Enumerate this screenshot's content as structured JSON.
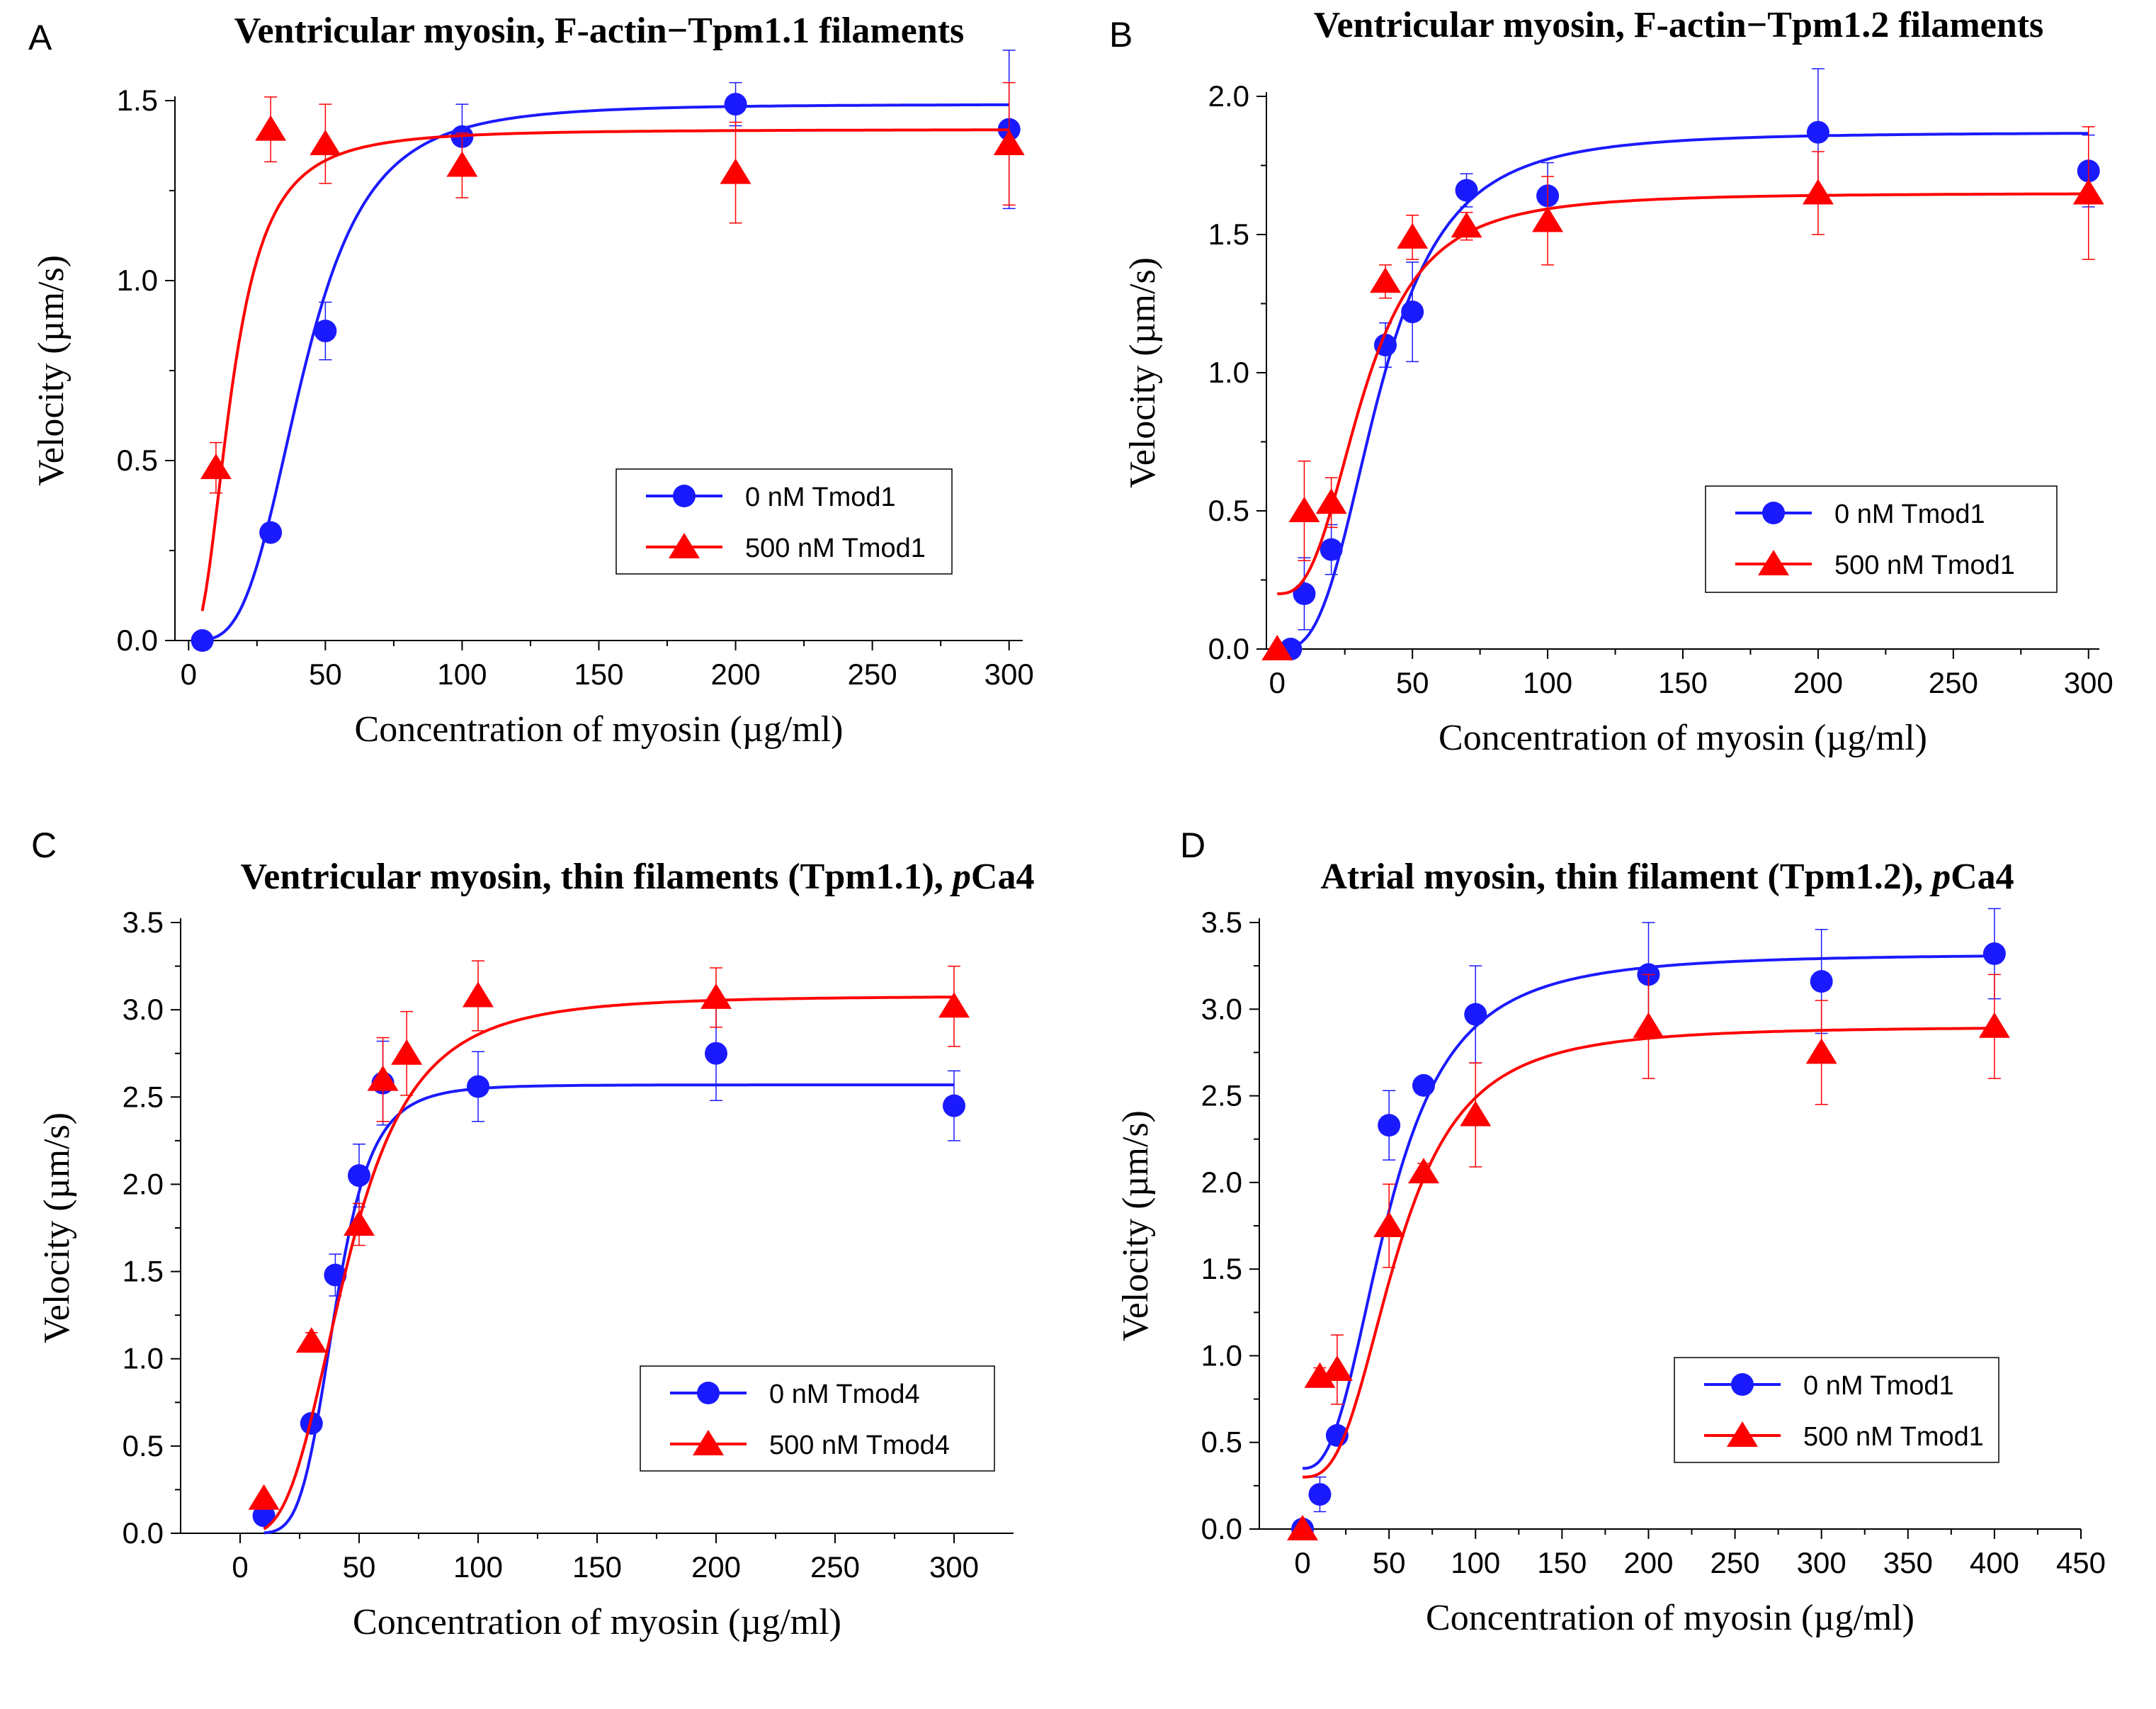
{
  "chart_data": [
    {
      "panel": "A",
      "type": "scatter",
      "title": "Ventricular myosin, F-actin−Tpm1.1 filaments",
      "title_pca": "",
      "xlabel": "Concentration of myosin (µg/ml)",
      "ylabel": "Velocity (µm/s)",
      "xlim": [
        -5,
        305
      ],
      "ylim": [
        0,
        1.5
      ],
      "xticks": [
        0,
        50,
        100,
        150,
        200,
        250,
        300
      ],
      "yticks": [
        0.0,
        0.5,
        1.0,
        1.5
      ],
      "ytick_decimals": 1,
      "legend_position": "center-right",
      "series": [
        {
          "name": "0 nM Tmod1",
          "color": "#1a1aff",
          "marker": "circle",
          "x": [
            5,
            30,
            50,
            100,
            200,
            300
          ],
          "y": [
            0.0,
            0.3,
            0.86,
            1.4,
            1.49,
            1.42
          ],
          "err": [
            0,
            0,
            0.08,
            0.09,
            0.06,
            0.22
          ],
          "fit": {
            "vmax": 1.49,
            "k": 42,
            "n": 3.5,
            "x_from": 5,
            "x_to": 300
          }
        },
        {
          "name": "500 nM Tmod1",
          "color": "#ff0000",
          "marker": "triangle",
          "x": [
            10,
            30,
            50,
            100,
            200,
            300
          ],
          "y": [
            0.48,
            1.42,
            1.38,
            1.32,
            1.3,
            1.38
          ],
          "err": [
            0.07,
            0.09,
            0.11,
            0.09,
            0.14,
            0.17
          ],
          "fit": {
            "vmax": 1.42,
            "k": 16,
            "n": 2.4,
            "x_from": 5,
            "x_to": 300
          }
        }
      ]
    },
    {
      "panel": "B",
      "type": "scatter",
      "title": "Ventricular myosin, F-actin−Tpm1.2 filaments",
      "title_pca": "",
      "xlabel": "Concentration of myosin (µg/ml)",
      "ylabel": "Velocity (µm/s)",
      "xlim": [
        -4,
        304
      ],
      "ylim": [
        0,
        2.0
      ],
      "xticks": [
        0,
        50,
        100,
        150,
        200,
        250,
        300
      ],
      "yticks": [
        0.0,
        0.5,
        1.0,
        1.5,
        2.0
      ],
      "ytick_decimals": 1,
      "legend_position": "center-right",
      "series": [
        {
          "name": "0 nM Tmod1",
          "color": "#1a1aff",
          "marker": "circle",
          "x": [
            5,
            10,
            20,
            40,
            50,
            70,
            100,
            200,
            300
          ],
          "y": [
            0.0,
            0.2,
            0.36,
            1.1,
            1.22,
            1.66,
            1.64,
            1.87,
            1.73
          ],
          "err": [
            0,
            0.13,
            0.09,
            0.08,
            0.18,
            0.06,
            0.12,
            0.23,
            0.13
          ],
          "fit": {
            "vmax": 1.87,
            "k": 38,
            "n": 3.0,
            "x_from": 5,
            "x_to": 300
          }
        },
        {
          "name": "500 nM Tmod1",
          "color": "#ff0000",
          "marker": "triangle",
          "x": [
            0,
            10,
            20,
            40,
            50,
            70,
            100,
            200,
            300
          ],
          "y": [
            0.0,
            0.5,
            0.53,
            1.33,
            1.49,
            1.53,
            1.55,
            1.65,
            1.65
          ],
          "err": [
            0,
            0.18,
            0.09,
            0.06,
            0.08,
            0.05,
            0.16,
            0.15,
            0.24
          ],
          "fit": {
            "vmax": 1.65,
            "k": 32,
            "n": 2.8,
            "x_from": 0,
            "x_to": 300,
            "offset": 0.2
          }
        }
      ]
    },
    {
      "panel": "C",
      "type": "scatter",
      "title": "Ventricular myosin, thin filaments (Tpm1.1), ",
      "title_pca": "pCa4",
      "xlabel": "Concentration of myosin (µg/ml)",
      "ylabel": "Velocity (µm/s)",
      "xlim": [
        -25,
        325
      ],
      "ylim": [
        0,
        3.5
      ],
      "xticks": [
        0,
        50,
        100,
        150,
        200,
        250,
        300
      ],
      "yticks": [
        0.0,
        0.5,
        1.0,
        1.5,
        2.0,
        2.5,
        3.0,
        3.5
      ],
      "ytick_decimals": 1,
      "legend_position": "bottom-right",
      "series": [
        {
          "name": "0 nM  Tmod4",
          "color": "#1a1aff",
          "marker": "circle",
          "x": [
            10,
            30,
            40,
            50,
            60,
            100,
            200,
            300
          ],
          "y": [
            0.1,
            0.63,
            1.48,
            2.05,
            2.58,
            2.56,
            2.75,
            2.45
          ],
          "err": [
            0,
            0.05,
            0.12,
            0.18,
            0.24,
            0.2,
            0.27,
            0.2
          ],
          "fit": {
            "vmax": 2.57,
            "k": 40,
            "n": 5.2,
            "x_from": 10,
            "x_to": 300
          }
        },
        {
          "name": "500 nM Tmod4",
          "color": "#ff0000",
          "marker": "triangle",
          "x": [
            10,
            30,
            50,
            60,
            70,
            100,
            200,
            300
          ],
          "y": [
            0.2,
            1.1,
            1.77,
            2.6,
            2.75,
            3.08,
            3.07,
            3.02
          ],
          "err": [
            0,
            0.05,
            0.12,
            0.24,
            0.24,
            0.2,
            0.17,
            0.23
          ],
          "fit": {
            "vmax": 3.08,
            "k": 45,
            "n": 3.2,
            "x_from": 10,
            "x_to": 300
          }
        }
      ]
    },
    {
      "panel": "D",
      "type": "scatter",
      "title": "Atrial myosin, thin filament (Tpm1.2), ",
      "title_pca": "pCa4",
      "xlabel": "Concentration of myosin (µg/ml)",
      "ylabel": "Velocity (µm/s)",
      "xlim": [
        -25,
        450
      ],
      "ylim": [
        0,
        3.5
      ],
      "xticks": [
        0,
        50,
        100,
        150,
        200,
        250,
        300,
        350,
        400,
        450
      ],
      "yticks": [
        0.0,
        0.5,
        1.0,
        1.5,
        2.0,
        2.5,
        3.0,
        3.5
      ],
      "ytick_decimals": 1,
      "legend_position": "bottom-right",
      "series": [
        {
          "name": "0 nM Tmod1",
          "color": "#1a1aff",
          "marker": "circle",
          "x": [
            0,
            10,
            20,
            50,
            70,
            100,
            200,
            300,
            400
          ],
          "y": [
            0.0,
            0.2,
            0.54,
            2.33,
            2.56,
            2.97,
            3.2,
            3.16,
            3.32
          ],
          "err": [
            0,
            0.1,
            0.05,
            0.2,
            0.05,
            0.28,
            0.3,
            0.3,
            0.26
          ],
          "fit": {
            "vmax": 3.32,
            "k": 50,
            "n": 2.6,
            "x_from": 0,
            "x_to": 400,
            "offset": 0.35
          }
        },
        {
          "name": "500 nM Tmod1",
          "color": "#ff0000",
          "marker": "triangle",
          "x": [
            0,
            10,
            20,
            50,
            70,
            100,
            200,
            300,
            400
          ],
          "y": [
            0.0,
            0.88,
            0.92,
            1.75,
            2.06,
            2.39,
            2.9,
            2.75,
            2.9
          ],
          "err": [
            0,
            0.05,
            0.2,
            0.24,
            0.05,
            0.3,
            0.3,
            0.3,
            0.3
          ],
          "fit": {
            "vmax": 2.9,
            "k": 55,
            "n": 2.8,
            "x_from": 0,
            "x_to": 400,
            "offset": 0.3
          }
        }
      ]
    }
  ]
}
